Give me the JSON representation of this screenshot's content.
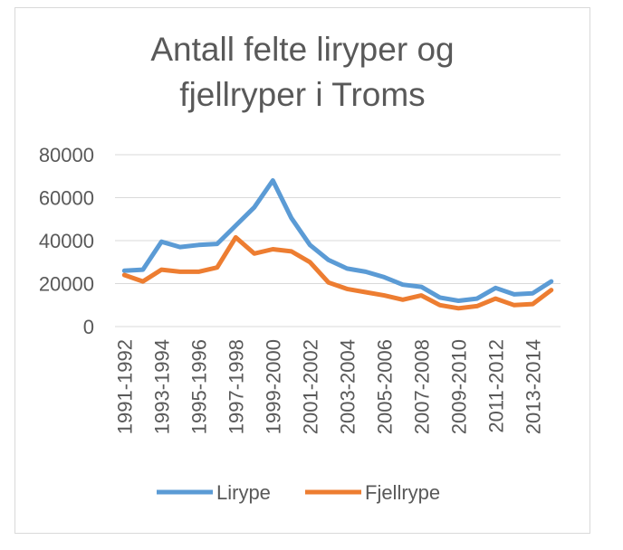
{
  "title_line1": "Antall felte liryper og",
  "title_line2": "fjellryper i Troms",
  "chart_data": {
    "type": "line",
    "title": "Antall felte liryper og fjellryper i Troms",
    "xlabel": "",
    "ylabel": "",
    "ylim": [
      0,
      80000
    ],
    "yticks": [
      "0",
      "20000",
      "40000",
      "60000",
      "80000"
    ],
    "grid": true,
    "legend_position": "bottom",
    "x": [
      "1991-1992",
      "1992-1993",
      "1993-1994",
      "1994-1995",
      "1995-1996",
      "1996-1997",
      "1997-1998",
      "1998-1999",
      "1999-2000",
      "2000-2001",
      "2001-2002",
      "2002-2003",
      "2003-2004",
      "2004-2005",
      "2005-2006",
      "2006-2007",
      "2007-2008",
      "2008-2009",
      "2009-2010",
      "2010-2011",
      "2011-2012",
      "2012-2013",
      "2013-2014",
      "2014-2015"
    ],
    "tick_labels": [
      "1991-1992",
      "1993-1994",
      "1995-1996",
      "1997-1998",
      "1999-2000",
      "2001-2002",
      "2003-2004",
      "2005-2006",
      "2007-2008",
      "2009-2010",
      "2011-2012",
      "2013-2014"
    ],
    "series": [
      {
        "name": "Lirype",
        "color": "#5b9bd5",
        "values": [
          26000,
          26500,
          39500,
          37000,
          38000,
          38500,
          47000,
          55500,
          68000,
          50500,
          38000,
          31000,
          27000,
          25500,
          23000,
          19500,
          18500,
          13500,
          12000,
          13000,
          18000,
          15000,
          15500,
          21000
        ]
      },
      {
        "name": "Fjellrype",
        "color": "#ed7d31",
        "values": [
          24000,
          21000,
          26500,
          25500,
          25500,
          27500,
          41500,
          34000,
          36000,
          35000,
          30000,
          20500,
          17500,
          16000,
          14500,
          12500,
          14500,
          10000,
          8500,
          9500,
          13000,
          10000,
          10500,
          17000
        ]
      }
    ]
  }
}
